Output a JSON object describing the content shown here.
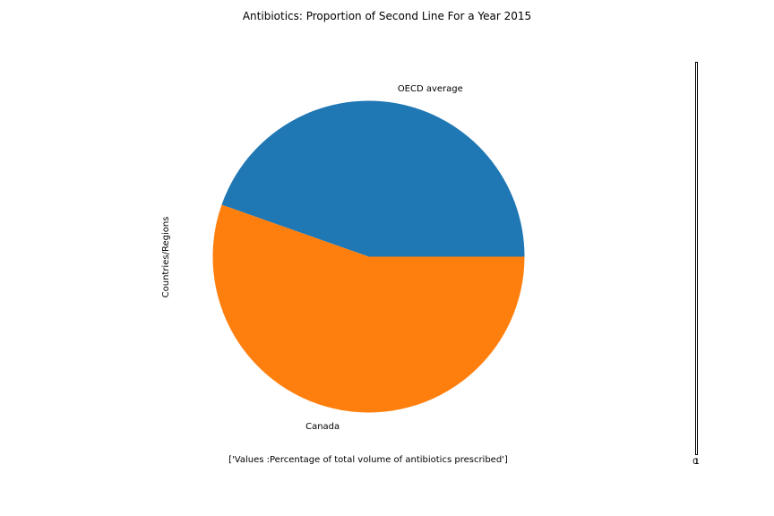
{
  "chart_data": {
    "type": "pie",
    "title": "Antibiotics: Proportion of Second Line For a Year 2015",
    "ylabel": "Countries/Regions",
    "xlabel": "['Values :Percentage of total volume of antibiotics prescribed']",
    "slices": [
      {
        "label": "OECD average",
        "value": 44.6,
        "color": "#1f77b4"
      },
      {
        "label": "Canada",
        "value": 55.4,
        "color": "#ff7f0e"
      }
    ],
    "start_angle_deg": 0,
    "direction": "counterclockwise",
    "colorbar": {
      "tick_labels": [
        "0",
        "1"
      ]
    }
  }
}
